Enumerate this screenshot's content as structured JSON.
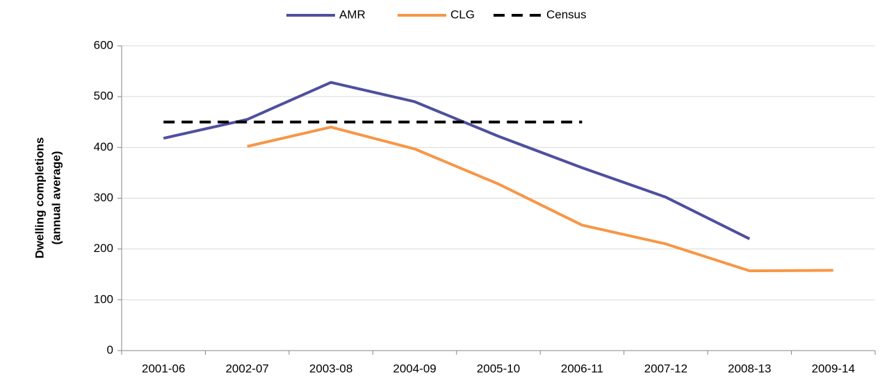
{
  "chart_data": {
    "type": "line",
    "y_label": [
      "Dwelling completions",
      "(annual average)"
    ],
    "categories": [
      "2001-06",
      "2002-07",
      "2003-08",
      "2004-09",
      "2005-10",
      "2006-11",
      "2007-12",
      "2008-13",
      "2009-14"
    ],
    "series": [
      {
        "name": "AMR",
        "color": "#4f4f9f",
        "dashed": false,
        "values": [
          418,
          455,
          528,
          490,
          422,
          360,
          302,
          220,
          null
        ]
      },
      {
        "name": "CLG",
        "color": "#f79646",
        "dashed": false,
        "values": [
          null,
          402,
          440,
          397,
          328,
          247,
          210,
          157,
          158
        ]
      },
      {
        "name": "Census",
        "color": "#000000",
        "dashed": true,
        "values": [
          450,
          450,
          450,
          450,
          450,
          450,
          null,
          null,
          null
        ]
      }
    ],
    "ylim": [
      0,
      600
    ],
    "yticks": [
      0,
      100,
      200,
      300,
      400,
      500,
      600
    ],
    "grid": true,
    "legend": "top"
  }
}
